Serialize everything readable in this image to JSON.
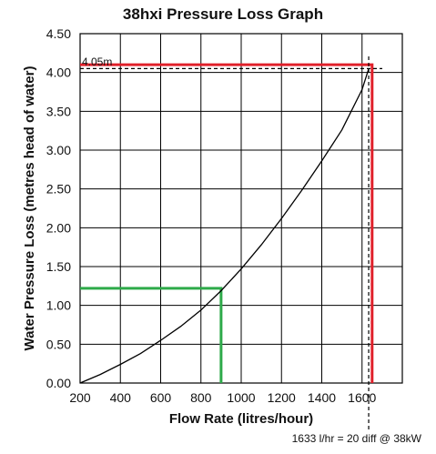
{
  "chart_data": {
    "type": "line",
    "title": "38hxi Pressure Loss Graph",
    "xlabel": "Flow Rate (litres/hour)",
    "ylabel": "Water Pressure Loss (metres head of water)",
    "xlim": [
      200,
      1800
    ],
    "ylim": [
      0,
      4.5
    ],
    "grid": true,
    "x_ticks": [
      "200",
      "400",
      "600",
      "800",
      "1000",
      "1200",
      "1400",
      "1600"
    ],
    "y_ticks": [
      "0.00",
      "0.50",
      "1.00",
      "1.50",
      "2.00",
      "2.50",
      "3.00",
      "3.50",
      "4.00",
      "4.50"
    ],
    "series": [
      {
        "color": "#000000",
        "x": [
          200,
          300,
          400,
          500,
          600,
          700,
          800,
          900,
          1000,
          1100,
          1200,
          1300,
          1400,
          1500,
          1600,
          1633
        ],
        "y": [
          0.0,
          0.11,
          0.24,
          0.38,
          0.55,
          0.73,
          0.94,
          1.19,
          1.47,
          1.78,
          2.12,
          2.48,
          2.86,
          3.26,
          3.78,
          4.05
        ]
      }
    ],
    "reference_lines": [
      {
        "color": "#2eaa4a",
        "x": 900,
        "y": 1.22
      },
      {
        "color": "#e0202a",
        "x": 1650,
        "y": 4.1
      }
    ],
    "dashed_markers": {
      "x": 1633,
      "y": 4.05
    },
    "annotations": {
      "y_marker_label": "4.05m",
      "x_marker_label": "1633 l/hr = 20 diff @ 38kW"
    }
  }
}
